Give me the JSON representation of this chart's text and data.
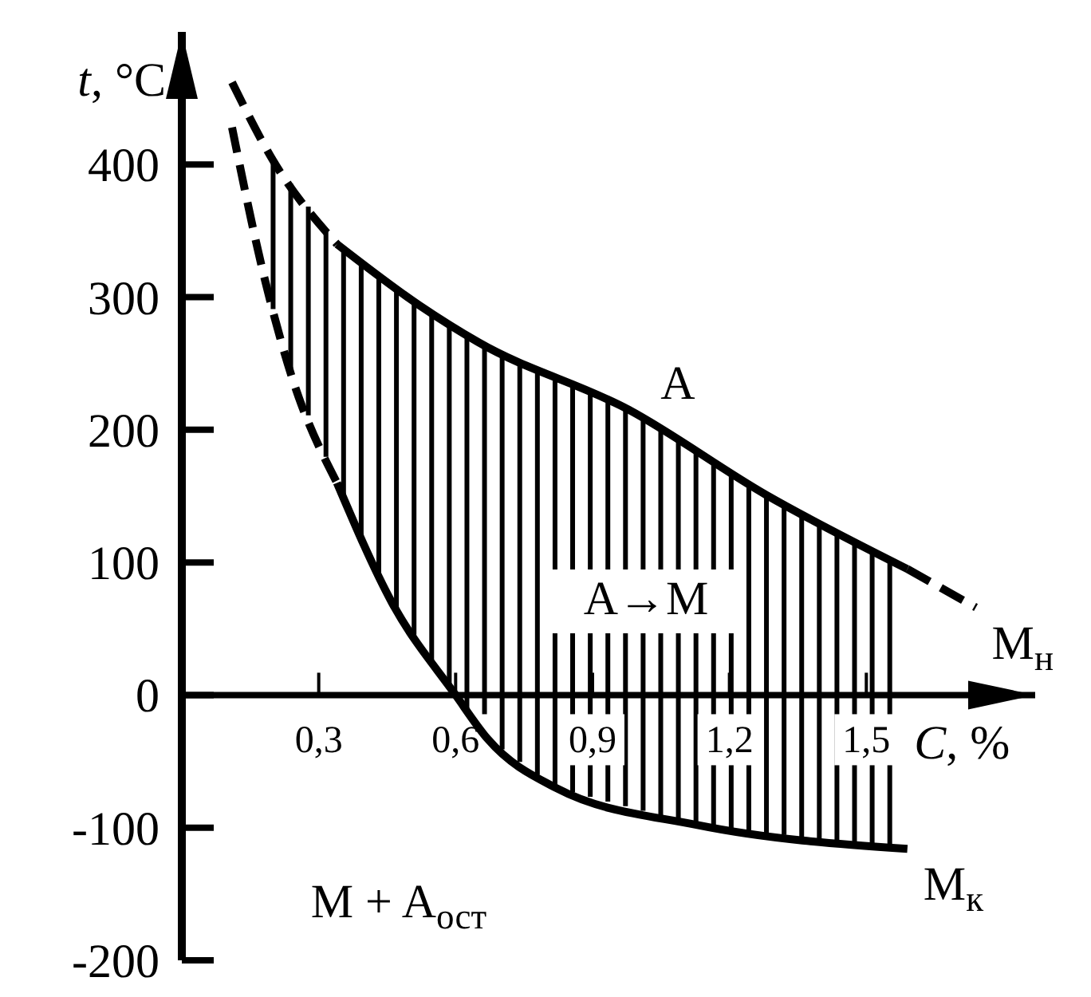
{
  "chart_data": {
    "type": "line",
    "xlabel": "C, %",
    "ylabel": "t, °C",
    "xlim": [
      0,
      1.87
    ],
    "ylim": [
      -200,
      500
    ],
    "xticks": [
      {
        "value": 0.3,
        "label": "0,3"
      },
      {
        "value": 0.6,
        "label": "0,6"
      },
      {
        "value": 0.9,
        "label": "0,9"
      },
      {
        "value": 1.2,
        "label": "1,2"
      },
      {
        "value": 1.5,
        "label": "1,5"
      }
    ],
    "yticks": [
      -200,
      -100,
      0,
      100,
      200,
      300,
      400
    ],
    "series": [
      {
        "color": "#000000",
        "line_style": "dashed",
        "x": [
          0.11,
          0.2,
          0.34
        ],
        "values": [
          462,
          403,
          340
        ]
      },
      {
        "name": "M$_{н}$",
        "color": "#000000",
        "line_style": "solid",
        "x": [
          0.34,
          0.52,
          0.65,
          0.98,
          1.28,
          1.59
        ],
        "values": [
          340,
          294,
          266,
          215,
          151,
          95
        ]
      },
      {
        "color": "#000000",
        "line_style": "dashed",
        "x": [
          1.59,
          1.74
        ],
        "values": [
          95,
          66
        ]
      },
      {
        "color": "#000000",
        "line_style": "dashed",
        "x": [
          0.11,
          0.18,
          0.24,
          0.34
        ],
        "values": [
          428,
          316,
          241,
          160
        ]
      },
      {
        "name": "M$_{к}$",
        "color": "#000000",
        "line_style": "solid",
        "x": [
          0.34,
          0.46,
          0.6,
          0.67,
          0.82,
          1.13,
          1.59
        ],
        "values": [
          160,
          70,
          0,
          -33,
          -70,
          -98,
          -116
        ]
      }
    ],
    "annotations": [
      "A",
      "A→M",
      "M + A$_{ост}$"
    ]
  }
}
